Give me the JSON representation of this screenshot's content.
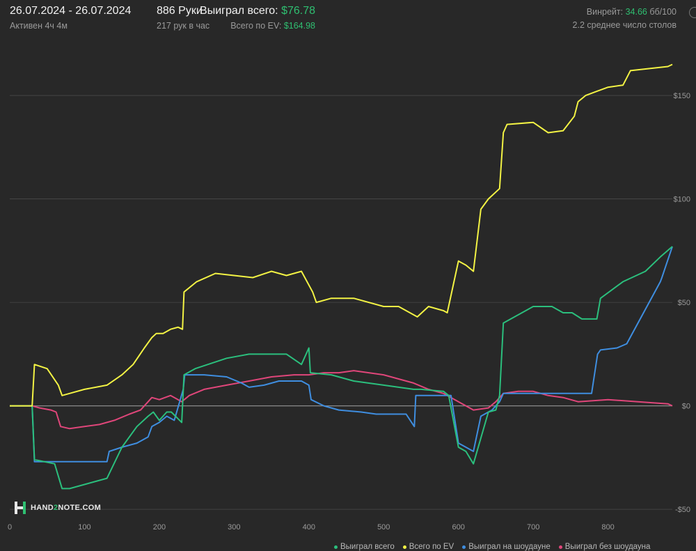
{
  "header": {
    "date_range": "26.07.2024 - 26.07.2024",
    "active_time": "Активен 4ч 4м",
    "hands": "886 Руки",
    "hands_per_hour": "217 рук в час",
    "won_label": "Выиграл всего:",
    "won_value": "$76.78",
    "ev_label": "Всего по EV:",
    "ev_value": "$164.98",
    "winrate_label": "Винрейт:",
    "winrate_value": "34.66",
    "winrate_unit": "бб/100",
    "avg_tables": "2.2 среднее число столов"
  },
  "logo": {
    "text": "HAND2NOTE.COM",
    "text_a": "HAND",
    "text_b": "2",
    "text_c": "NOTE.COM"
  },
  "colors": {
    "background": "#282828",
    "won": "#2bbf7d",
    "ev": "#f3f344",
    "showdown": "#3f8ee0",
    "nonshowdown": "#e0467a",
    "positive": "#2fbf71"
  },
  "chart_data": {
    "type": "line",
    "xlim": [
      0,
      886
    ],
    "ylim": [
      -55,
      182
    ],
    "x_ticks": [
      0,
      100,
      200,
      300,
      400,
      500,
      600,
      700,
      800
    ],
    "y_ticks": [
      -50,
      0,
      50,
      100,
      150
    ],
    "y_tick_labels": [
      "-$50",
      "$0",
      "$50",
      "$100",
      "$150"
    ],
    "grid": true,
    "legend_position": "bottom-right",
    "series": [
      {
        "name": "Выиграл всего",
        "color": "#2bbf7d",
        "x": [
          0,
          30,
          33,
          60,
          70,
          80,
          100,
          130,
          150,
          170,
          185,
          192,
          200,
          210,
          216,
          230,
          233,
          248,
          290,
          320,
          370,
          390,
          400,
          402,
          430,
          460,
          500,
          540,
          550,
          580,
          587,
          600,
          610,
          620,
          640,
          650,
          655,
          660,
          700,
          725,
          740,
          750,
          752,
          765,
          768,
          778,
          785,
          790,
          820,
          850,
          870,
          886
        ],
        "y": [
          0,
          0,
          -26,
          -28,
          -40,
          -40,
          -38,
          -35,
          -20,
          -10,
          -5,
          -3,
          -7,
          -3,
          -3,
          -8,
          15,
          18,
          23,
          25,
          25,
          20,
          28,
          16,
          15,
          12,
          10,
          8,
          8,
          7,
          5,
          -20,
          -22,
          -28,
          -3,
          -2,
          5,
          40,
          48,
          48,
          45,
          45,
          45,
          42,
          42,
          42,
          42,
          52,
          60,
          65,
          72,
          77
        ]
      },
      {
        "name": "Всего по EV",
        "color": "#f3f344",
        "x": [
          0,
          30,
          33,
          50,
          65,
          70,
          80,
          100,
          130,
          150,
          165,
          180,
          190,
          196,
          205,
          215,
          225,
          231,
          233,
          250,
          275,
          300,
          325,
          350,
          370,
          390,
          405,
          410,
          430,
          460,
          500,
          520,
          540,
          545,
          560,
          580,
          585,
          600,
          610,
          620,
          630,
          640,
          655,
          660,
          665,
          700,
          720,
          740,
          755,
          760,
          770,
          785,
          800,
          820,
          830,
          880,
          886
        ],
        "y": [
          0,
          0,
          20,
          18,
          10,
          5,
          6,
          8,
          10,
          15,
          20,
          28,
          33,
          35,
          35,
          37,
          38,
          37,
          55,
          60,
          64,
          63,
          62,
          65,
          63,
          65,
          55,
          50,
          52,
          52,
          48,
          48,
          44,
          43,
          48,
          46,
          45,
          70,
          68,
          65,
          95,
          100,
          105,
          132,
          136,
          137,
          132,
          133,
          140,
          147,
          150,
          152,
          154,
          155,
          162,
          164,
          165
        ]
      },
      {
        "name": "Выиграл на шоудауне",
        "color": "#3f8ee0",
        "x": [
          0,
          30,
          33,
          60,
          100,
          130,
          133,
          150,
          170,
          185,
          190,
          200,
          210,
          220,
          232,
          234,
          260,
          290,
          310,
          320,
          340,
          360,
          370,
          380,
          390,
          400,
          403,
          420,
          440,
          470,
          490,
          530,
          541,
          543,
          570,
          580,
          590,
          600,
          610,
          620,
          630,
          640,
          645,
          650,
          655,
          660,
          690,
          730,
          750,
          752,
          765,
          768,
          778,
          786,
          790,
          812,
          825,
          870,
          872,
          886
        ],
        "y": [
          0,
          0,
          -27,
          -27,
          -27,
          -27,
          -22,
          -20,
          -18,
          -15,
          -10,
          -8,
          -5,
          -7,
          8,
          15,
          15,
          14,
          11,
          9,
          10,
          12,
          12,
          12,
          12,
          10,
          3,
          0,
          -2,
          -3,
          -4,
          -4,
          -10,
          5,
          5,
          5,
          5,
          -18,
          -20,
          -22,
          -5,
          -3,
          -2,
          0,
          2,
          6,
          6,
          6,
          6,
          6,
          6,
          6,
          6,
          25,
          27,
          28,
          30,
          60,
          62,
          77
        ]
      },
      {
        "name": "Выиграл без шоудауна",
        "color": "#e0467a",
        "x": [
          0,
          30,
          40,
          55,
          62,
          68,
          80,
          100,
          120,
          140,
          160,
          175,
          185,
          190,
          200,
          215,
          225,
          230,
          240,
          260,
          290,
          320,
          350,
          380,
          400,
          420,
          440,
          460,
          480,
          500,
          520,
          540,
          560,
          580,
          600,
          610,
          620,
          640,
          650,
          660,
          680,
          700,
          720,
          740,
          760,
          800,
          840,
          880,
          886
        ],
        "y": [
          0,
          0,
          -1,
          -2,
          -3,
          -10,
          -11,
          -10,
          -9,
          -7,
          -4,
          -2,
          2,
          4,
          3,
          5,
          3,
          2,
          5,
          8,
          10,
          12,
          14,
          15,
          15,
          16,
          16,
          17,
          16,
          15,
          13,
          11,
          8,
          6,
          2,
          0,
          -2,
          -1,
          2,
          6,
          7,
          7,
          5,
          4,
          2,
          3,
          2,
          1,
          0
        ]
      }
    ]
  }
}
